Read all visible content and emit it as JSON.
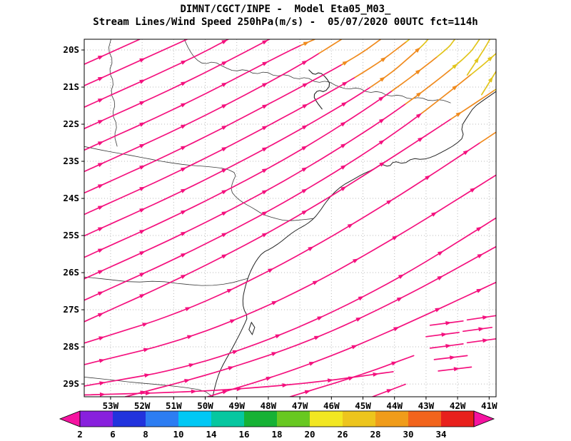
{
  "header": {
    "line1": "DIMNT/CGCT/INPE -  Model Eta05_M03_",
    "line2": "Stream Lines/Wind Speed 250hPa(m/s) -  05/07/2020 00UTC fct=114h"
  },
  "chart_data": {
    "type": "streamline-map",
    "institution": "DIMNT/CGCT/INPE",
    "model": "Eta05_M03_",
    "variable": "Stream Lines/Wind Speed 250hPa(m/s)",
    "run": "05/07/2020 00UTC",
    "forecast": "fct=114h",
    "axes": {
      "lat_labels": [
        "20S",
        "21S",
        "22S",
        "23S",
        "24S",
        "25S",
        "26S",
        "27S",
        "28S",
        "29S"
      ],
      "lon_labels": [
        "53W",
        "52W",
        "51W",
        "50W",
        "49W",
        "48W",
        "47W",
        "46W",
        "45W",
        "44W",
        "43W",
        "42W",
        "41W"
      ]
    },
    "colorbar": {
      "values": [
        2,
        6,
        8,
        10,
        14,
        16,
        18,
        20,
        26,
        28,
        30,
        34
      ],
      "segment_colors": [
        "#8820dd",
        "#2233dd",
        "#2d7df2",
        "#00c8f5",
        "#06c7a0",
        "#16b235",
        "#68c821",
        "#f2e722",
        "#edc51d",
        "#f09c1a",
        "#f2641c",
        "#e8201c"
      ],
      "arrow_color": "#f513a0"
    },
    "speed_zones": [
      {
        "min_score": 0.77,
        "color": "#e2c51c"
      },
      {
        "min_score": 0.5,
        "color": "#f08b1e"
      },
      {
        "min_score": -99,
        "color": "#f4117e"
      }
    ],
    "streamlines": [
      {
        "points": [
          [
            0,
            0.07
          ],
          [
            0.135,
            0
          ]
        ]
      },
      {
        "points": [
          [
            0,
            0.13
          ],
          [
            0.25,
            0
          ]
        ]
      },
      {
        "points": [
          [
            0,
            0.19
          ],
          [
            0.25,
            0.06
          ],
          [
            0.35,
            0
          ]
        ]
      },
      {
        "points": [
          [
            0,
            0.25
          ],
          [
            0.25,
            0.12
          ],
          [
            0.45,
            0
          ]
        ]
      },
      {
        "points": [
          [
            0,
            0.31
          ],
          [
            0.25,
            0.18
          ],
          [
            0.5,
            0.03
          ],
          [
            0.56,
            0
          ]
        ]
      },
      {
        "points": [
          [
            0,
            0.37
          ],
          [
            0.25,
            0.24
          ],
          [
            0.5,
            0.09
          ],
          [
            0.625,
            0
          ]
        ]
      },
      {
        "points": [
          [
            0,
            0.43
          ],
          [
            0.25,
            0.3
          ],
          [
            0.5,
            0.15
          ],
          [
            0.66,
            0.05
          ],
          [
            0.72,
            0
          ]
        ]
      },
      {
        "points": [
          [
            0,
            0.49
          ],
          [
            0.25,
            0.36
          ],
          [
            0.5,
            0.21
          ],
          [
            0.7,
            0.08
          ],
          [
            0.79,
            0
          ]
        ]
      },
      {
        "points": [
          [
            0,
            0.55
          ],
          [
            0.25,
            0.42
          ],
          [
            0.5,
            0.27
          ],
          [
            0.72,
            0.12
          ],
          [
            0.82,
            0.02
          ],
          [
            0.835,
            0
          ]
        ]
      },
      {
        "points": [
          [
            0,
            0.61
          ],
          [
            0.25,
            0.48
          ],
          [
            0.5,
            0.33
          ],
          [
            0.72,
            0.17
          ],
          [
            0.88,
            0.03
          ],
          [
            0.9,
            0
          ]
        ]
      },
      {
        "points": [
          [
            0,
            0.67
          ],
          [
            0.25,
            0.54
          ],
          [
            0.5,
            0.39
          ],
          [
            0.75,
            0.21
          ],
          [
            0.93,
            0.05
          ],
          [
            0.96,
            0
          ]
        ]
      },
      {
        "points": [
          [
            0,
            0.73
          ],
          [
            0.25,
            0.6
          ],
          [
            0.5,
            0.45
          ],
          [
            0.75,
            0.27
          ],
          [
            0.95,
            0.09
          ],
          [
            1,
            0.04
          ]
        ]
      },
      {
        "points": [
          [
            0,
            0.79
          ],
          [
            0.25,
            0.66
          ],
          [
            0.5,
            0.51
          ],
          [
            0.75,
            0.33
          ],
          [
            1,
            0.14
          ]
        ]
      },
      {
        "points": [
          [
            0,
            0.85
          ],
          [
            0.25,
            0.76
          ],
          [
            0.5,
            0.62
          ],
          [
            0.75,
            0.45
          ],
          [
            1,
            0.26
          ]
        ]
      },
      {
        "points": [
          [
            0,
            0.91
          ],
          [
            0.25,
            0.84
          ],
          [
            0.5,
            0.72
          ],
          [
            0.75,
            0.56
          ],
          [
            1,
            0.38
          ]
        ]
      },
      {
        "points": [
          [
            0,
            0.97
          ],
          [
            0.25,
            0.92
          ],
          [
            0.5,
            0.82
          ],
          [
            0.75,
            0.68
          ],
          [
            1,
            0.5
          ]
        ]
      },
      {
        "points": [
          [
            0,
            0.995
          ],
          [
            0.3,
            0.985
          ],
          [
            0.55,
            0.962
          ],
          [
            0.75,
            0.93
          ]
        ]
      },
      {
        "points": [
          [
            0.1,
            1
          ],
          [
            0.33,
            0.93
          ],
          [
            0.56,
            0.84
          ],
          [
            0.78,
            0.72
          ],
          [
            1,
            0.58
          ]
        ]
      },
      {
        "points": [
          [
            0.3,
            1
          ],
          [
            0.5,
            0.93
          ],
          [
            0.7,
            0.84
          ],
          [
            1,
            0.68
          ]
        ]
      },
      {
        "points": [
          [
            0.5,
            1
          ],
          [
            0.67,
            0.94
          ],
          [
            0.8,
            0.885
          ]
        ]
      },
      {
        "points": [
          [
            0.7,
            1
          ],
          [
            0.78,
            0.965
          ]
        ]
      },
      {
        "points": [
          [
            0.93,
            0.1
          ],
          [
            0.97,
            0.03
          ],
          [
            0.985,
            0
          ]
        ]
      },
      {
        "points": [
          [
            0.965,
            0.155
          ],
          [
            1,
            0.09
          ]
        ]
      },
      {
        "points": [
          [
            0.84,
            0.8
          ],
          [
            0.92,
            0.788
          ]
        ]
      },
      {
        "points": [
          [
            0.93,
            0.785
          ],
          [
            1,
            0.773
          ]
        ]
      },
      {
        "points": [
          [
            0.83,
            0.832
          ],
          [
            0.91,
            0.82
          ]
        ]
      },
      {
        "points": [
          [
            0.92,
            0.817
          ],
          [
            0.99,
            0.806
          ]
        ]
      },
      {
        "points": [
          [
            0.84,
            0.864
          ],
          [
            0.92,
            0.852
          ]
        ]
      },
      {
        "points": [
          [
            0.93,
            0.849
          ],
          [
            1,
            0.838
          ]
        ]
      },
      {
        "points": [
          [
            0.85,
            0.896
          ],
          [
            0.93,
            0.885
          ]
        ]
      },
      {
        "points": [
          [
            0.86,
            0.928
          ],
          [
            0.94,
            0.917
          ]
        ]
      }
    ],
    "geography": {
      "coastline": [
        [
          1,
          0.146
        ],
        [
          0.97,
          0.17
        ],
        [
          0.946,
          0.19
        ],
        [
          0.931,
          0.216
        ],
        [
          0.915,
          0.245
        ],
        [
          0.922,
          0.273
        ],
        [
          0.901,
          0.295
        ],
        [
          0.873,
          0.313
        ],
        [
          0.846,
          0.329
        ],
        [
          0.821,
          0.337
        ],
        [
          0.797,
          0.333
        ],
        [
          0.776,
          0.349
        ],
        [
          0.752,
          0.341
        ],
        [
          0.74,
          0.357
        ],
        [
          0.721,
          0.349
        ],
        [
          0.7,
          0.365
        ],
        [
          0.676,
          0.377
        ],
        [
          0.652,
          0.393
        ],
        [
          0.627,
          0.409
        ],
        [
          0.603,
          0.433
        ],
        [
          0.586,
          0.457
        ],
        [
          0.572,
          0.481
        ],
        [
          0.558,
          0.501
        ],
        [
          0.541,
          0.517
        ],
        [
          0.516,
          0.533
        ],
        [
          0.496,
          0.549
        ],
        [
          0.475,
          0.569
        ],
        [
          0.454,
          0.585
        ],
        [
          0.433,
          0.597
        ],
        [
          0.419,
          0.617
        ],
        [
          0.407,
          0.641
        ],
        [
          0.397,
          0.669
        ],
        [
          0.39,
          0.697
        ],
        [
          0.385,
          0.724
        ],
        [
          0.386,
          0.752
        ],
        [
          0.397,
          0.776
        ],
        [
          0.388,
          0.8
        ],
        [
          0.378,
          0.824
        ],
        [
          0.367,
          0.848
        ],
        [
          0.354,
          0.876
        ],
        [
          0.34,
          0.904
        ],
        [
          0.328,
          0.932
        ],
        [
          0.319,
          0.964
        ],
        [
          0.312,
          1
        ]
      ],
      "island": [
        [
          0.406,
          0.792
        ],
        [
          0.414,
          0.806
        ],
        [
          0.408,
          0.826
        ],
        [
          0.4,
          0.812
        ],
        [
          0.406,
          0.792
        ]
      ],
      "lakes": [
        [
          [
            0.545,
            0.085
          ],
          [
            0.558,
            0.1
          ],
          [
            0.572,
            0.092
          ],
          [
            0.588,
            0.108
          ],
          [
            0.598,
            0.128
          ],
          [
            0.584,
            0.148
          ],
          [
            0.568,
            0.142
          ],
          [
            0.556,
            0.158
          ],
          [
            0.566,
            0.178
          ],
          [
            0.578,
            0.196
          ]
        ]
      ],
      "borders": [
        [
          [
            0.243,
            0
          ],
          [
            0.255,
            0.03
          ],
          [
            0.27,
            0.055
          ],
          [
            0.29,
            0.07
          ],
          [
            0.315,
            0.062
          ],
          [
            0.34,
            0.078
          ],
          [
            0.365,
            0.09
          ],
          [
            0.39,
            0.084
          ],
          [
            0.415,
            0.098
          ],
          [
            0.44,
            0.09
          ],
          [
            0.465,
            0.104
          ],
          [
            0.49,
            0.098
          ],
          [
            0.515,
            0.112
          ],
          [
            0.54,
            0.106
          ],
          [
            0.565,
            0.122
          ],
          [
            0.59,
            0.116
          ],
          [
            0.615,
            0.132
          ],
          [
            0.64,
            0.14
          ],
          [
            0.665,
            0.135
          ],
          [
            0.69,
            0.15
          ],
          [
            0.715,
            0.145
          ],
          [
            0.74,
            0.16
          ],
          [
            0.765,
            0.155
          ],
          [
            0.79,
            0.168
          ],
          [
            0.815,
            0.162
          ],
          [
            0.84,
            0.173
          ],
          [
            0.865,
            0.168
          ],
          [
            0.89,
            0.178
          ]
        ],
        [
          [
            0,
            0.3
          ],
          [
            0.05,
            0.312
          ],
          [
            0.1,
            0.322
          ],
          [
            0.15,
            0.333
          ],
          [
            0.2,
            0.344
          ],
          [
            0.25,
            0.352
          ],
          [
            0.3,
            0.356
          ],
          [
            0.345,
            0.362
          ],
          [
            0.37,
            0.376
          ],
          [
            0.36,
            0.4
          ],
          [
            0.356,
            0.424
          ],
          [
            0.37,
            0.444
          ],
          [
            0.39,
            0.46
          ],
          [
            0.412,
            0.474
          ],
          [
            0.434,
            0.49
          ],
          [
            0.46,
            0.5
          ],
          [
            0.49,
            0.508
          ],
          [
            0.52,
            0.506
          ],
          [
            0.545,
            0.503
          ],
          [
            0.558,
            0.501
          ]
        ],
        [
          [
            0,
            0.665
          ],
          [
            0.06,
            0.672
          ],
          [
            0.12,
            0.68
          ],
          [
            0.18,
            0.676
          ],
          [
            0.24,
            0.685
          ],
          [
            0.3,
            0.69
          ],
          [
            0.35,
            0.684
          ],
          [
            0.397,
            0.669
          ]
        ],
        [
          [
            0,
            0.945
          ],
          [
            0.06,
            0.952
          ],
          [
            0.12,
            0.96
          ],
          [
            0.18,
            0.966
          ],
          [
            0.24,
            0.973
          ],
          [
            0.29,
            0.982
          ],
          [
            0.312,
            1
          ]
        ],
        [
          [
            0.065,
            0
          ],
          [
            0.058,
            0.03
          ],
          [
            0.07,
            0.06
          ],
          [
            0.06,
            0.09
          ],
          [
            0.072,
            0.12
          ],
          [
            0.064,
            0.15
          ],
          [
            0.076,
            0.18
          ],
          [
            0.068,
            0.21
          ],
          [
            0.08,
            0.24
          ],
          [
            0.073,
            0.27
          ],
          [
            0.08,
            0.3
          ]
        ]
      ]
    }
  }
}
